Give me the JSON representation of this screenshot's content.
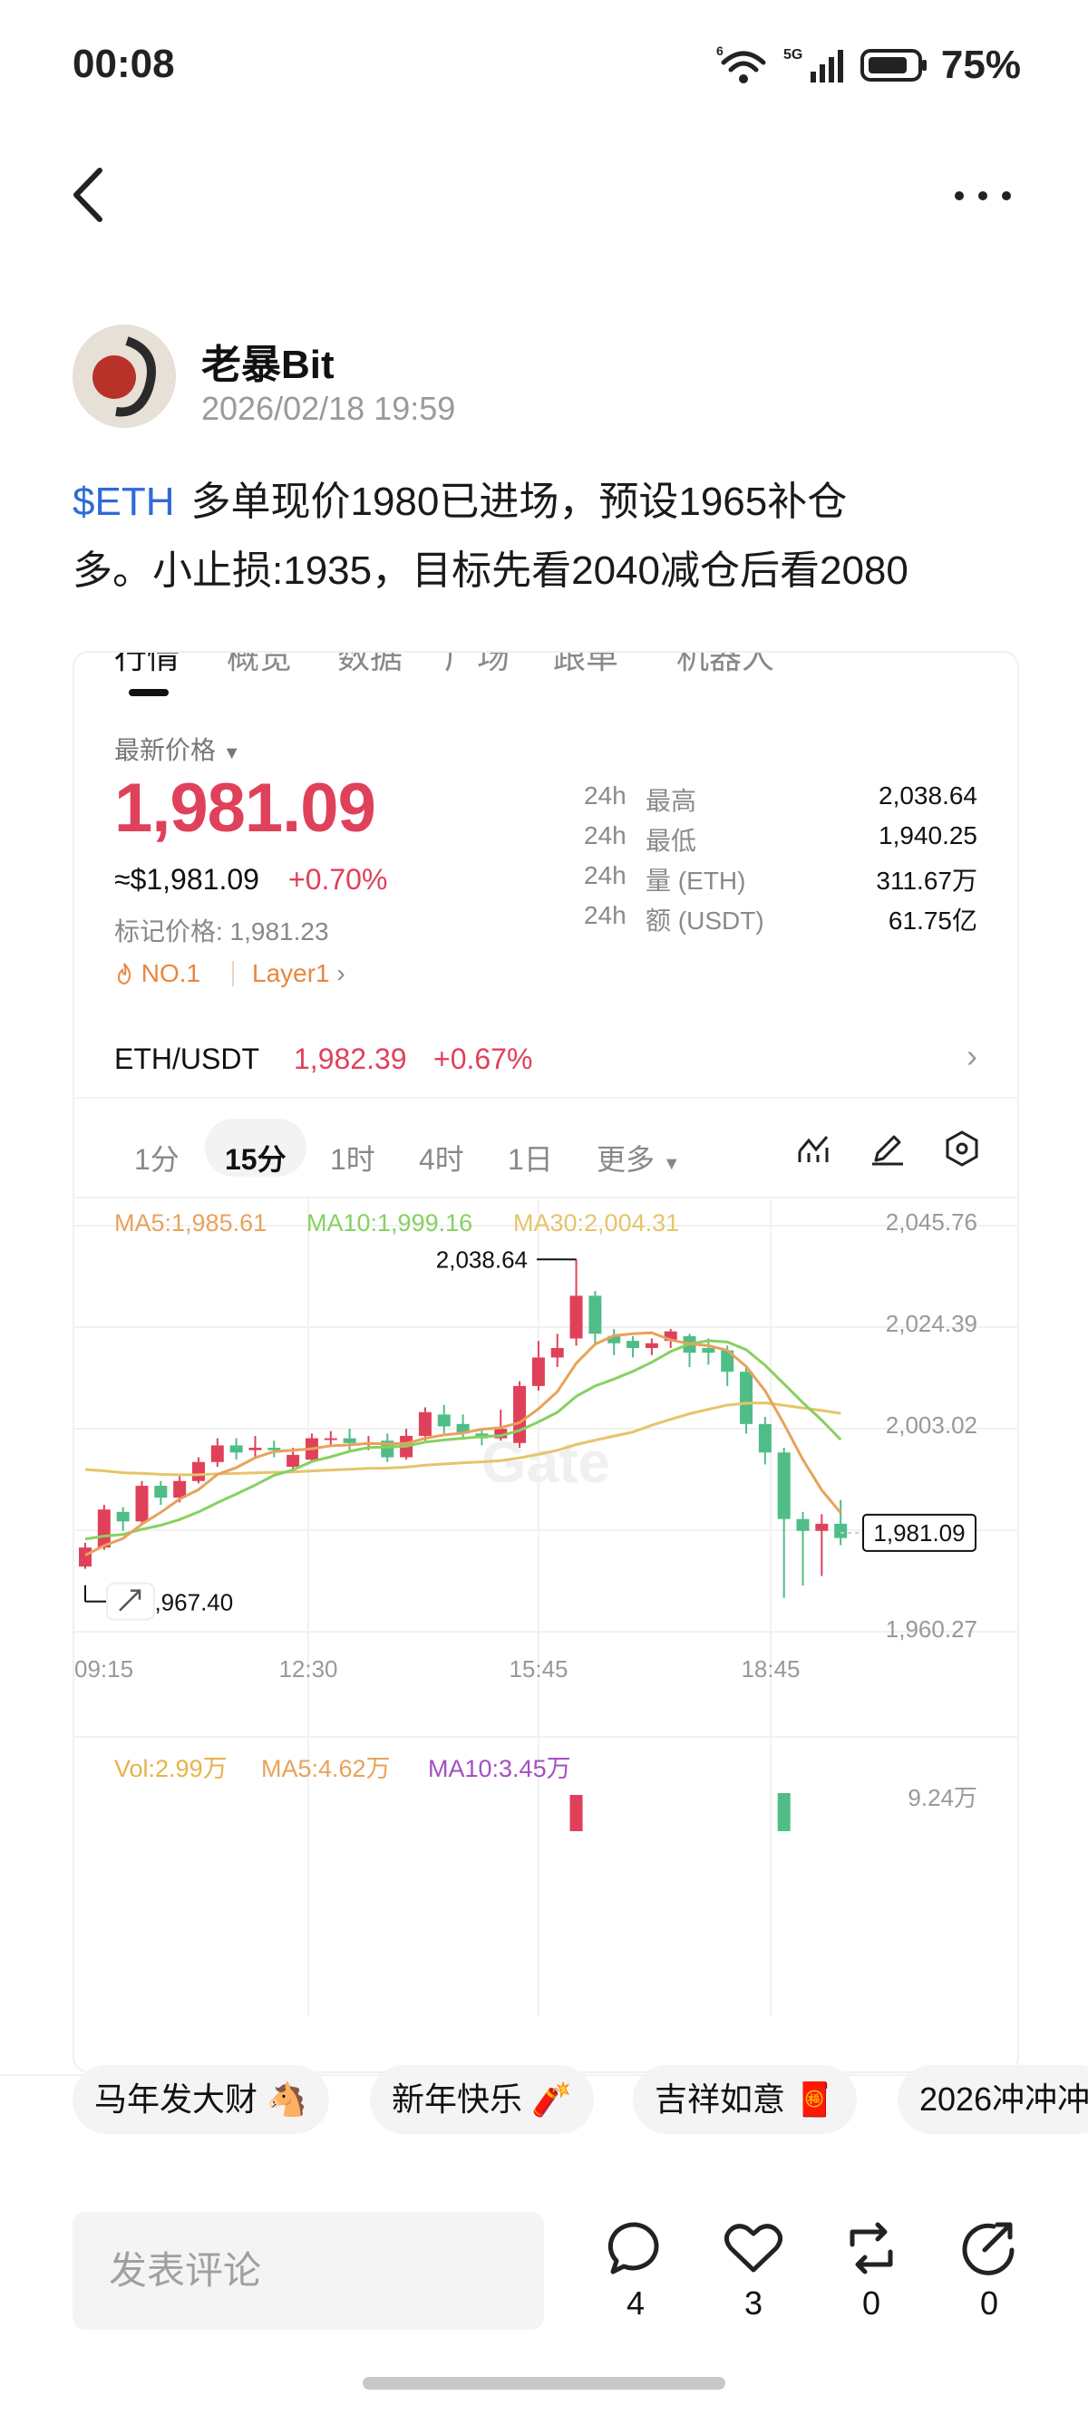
{
  "status": {
    "time": "00:08",
    "network": "5G",
    "battery": "75%"
  },
  "post": {
    "author": "老暴Bit",
    "avatar_text": "老暴",
    "time": "2026/02/18 19:59",
    "tag": "$ETH",
    "line1": "多单现价1980已进场，预设1965补仓",
    "line2": "多。小止损:1935，目标先看2040减仓后看2080"
  },
  "card": {
    "tabs": [
      "行情",
      "概览",
      "数据",
      "广场",
      "跟单",
      "机器人"
    ],
    "price_label": "最新价格",
    "price": "1,981.09",
    "price_usd": "≈$1,981.09",
    "change": "+0.70%",
    "mark_price": "标记价格: 1,981.23",
    "rank": "NO.1",
    "layer": "Layer1",
    "stats": [
      {
        "period": "24h",
        "label": "最高",
        "value": "2,038.64"
      },
      {
        "period": "24h",
        "label": "最低",
        "value": "1,940.25"
      },
      {
        "period": "24h",
        "label": "量 (ETH)",
        "value": "311.67万"
      },
      {
        "period": "24h",
        "label": "额 (USDT)",
        "value": "61.75亿"
      }
    ],
    "pair": {
      "name": "ETH/USDT",
      "price": "1,982.39",
      "change": "+0.67%"
    },
    "timeframes": [
      "1分",
      "15分",
      "1时",
      "4时",
      "1日",
      "更多"
    ],
    "active_timeframe": "15分"
  },
  "chart_data": {
    "type": "candlestick",
    "watermark": "Gate",
    "ma_legend": {
      "ma5": "MA5:1,985.61",
      "ma10": "MA10:1,999.16",
      "ma30": "MA30:2,004.31"
    },
    "y_ticks": [
      "2,045.76",
      "2,024.39",
      "2,003.02",
      "1,981.09",
      "1,960.27"
    ],
    "x_ticks": [
      "09:15",
      "12:30",
      "15:45",
      "18:45"
    ],
    "high_label": "2,038.64",
    "low_label": "1,967.40",
    "current_price": "1,981.09",
    "ylim": [
      1960.27,
      2045.76
    ],
    "colors": {
      "up": "#e0415a",
      "down": "#4fbd87",
      "ma5": "#e8a25a",
      "ma10": "#86d160",
      "ma30": "#e6c46a"
    },
    "candles": [
      [
        1974.0,
        1978.0,
        1973.5,
        1979.0
      ],
      [
        1978.0,
        1986.0,
        1977.5,
        1987.0
      ],
      [
        1985.5,
        1983.5,
        1981.5,
        1986.5
      ],
      [
        1983.5,
        1991.0,
        1983.0,
        1992.0
      ],
      [
        1991.0,
        1988.5,
        1987.0,
        1992.0
      ],
      [
        1988.5,
        1992.0,
        1987.5,
        1993.0
      ],
      [
        1992.0,
        1996.0,
        1991.5,
        1997.0
      ],
      [
        1996.0,
        1999.5,
        1995.0,
        2001.0
      ],
      [
        1999.5,
        1998.0,
        1996.5,
        2001.0
      ],
      [
        1998.5,
        1999.0,
        1997.0,
        2001.5
      ],
      [
        1999.0,
        1998.5,
        1997.0,
        2000.5
      ],
      [
        1995.0,
        1997.5,
        1994.5,
        1999.0
      ],
      [
        1996.5,
        2001.0,
        1996.0,
        2002.0
      ],
      [
        2001.0,
        2001.0,
        1999.5,
        2002.5
      ],
      [
        2001.0,
        2000.0,
        1998.0,
        2003.0
      ],
      [
        2000.0,
        2000.0,
        1998.5,
        2001.5
      ],
      [
        2000.5,
        1997.0,
        1996.0,
        2002.0
      ],
      [
        1997.0,
        2001.5,
        1996.5,
        2003.0
      ],
      [
        2001.5,
        2006.5,
        2000.5,
        2007.5
      ],
      [
        2006.0,
        2003.5,
        2002.0,
        2008.0
      ],
      [
        2004.0,
        2002.0,
        2001.0,
        2006.0
      ],
      [
        2002.0,
        2001.0,
        1999.5,
        2003.0
      ],
      [
        2001.0,
        2003.0,
        2000.5,
        2007.0
      ],
      [
        2000.0,
        2012.0,
        1999.0,
        2013.0
      ],
      [
        2012.0,
        2018.0,
        2011.0,
        2021.5
      ],
      [
        2018.0,
        2020.0,
        2016.0,
        2023.0
      ],
      [
        2022.0,
        2031.0,
        2020.5,
        2038.64
      ],
      [
        2031.0,
        2023.0,
        2021.0,
        2032.0
      ],
      [
        2022.5,
        2021.0,
        2018.5,
        2024.0
      ],
      [
        2021.5,
        2020.0,
        2018.0,
        2022.5
      ],
      [
        2020.0,
        2021.0,
        2018.5,
        2022.0
      ],
      [
        2021.5,
        2023.5,
        2020.0,
        2024.0
      ],
      [
        2022.5,
        2019.0,
        2016.0,
        2023.0
      ],
      [
        2020.0,
        2019.0,
        2016.5,
        2022.0
      ],
      [
        2019.5,
        2015.0,
        2012.0,
        2020.5
      ],
      [
        2015.0,
        2004.0,
        2002.0,
        2016.0
      ],
      [
        2004.0,
        1998.0,
        1995.5,
        2005.5
      ],
      [
        1998.0,
        1984.0,
        1967.4,
        1999.0
      ],
      [
        1984.0,
        1981.5,
        1970.0,
        1985.5
      ],
      [
        1981.5,
        1983.0,
        1972.0,
        1985.0
      ],
      [
        1983.0,
        1980.0,
        1978.5,
        1988.0
      ]
    ],
    "ma_hint": "MA lines computed from candle closes",
    "volume_legend": {
      "vol": "Vol:2.99万",
      "ma5": "MA5:4.62万",
      "ma10": "MA10:3.45万"
    },
    "volume_tick": "9.24万"
  },
  "chips": [
    "马年发大财 🐴",
    "新年快乐 🧨",
    "吉祥如意 🧧",
    "2026冲冲冲"
  ],
  "comment": {
    "placeholder": "发表评论"
  },
  "actions": [
    {
      "name": "comment",
      "count": "4"
    },
    {
      "name": "like",
      "count": "3"
    },
    {
      "name": "repost",
      "count": "0"
    },
    {
      "name": "share",
      "count": "0"
    }
  ]
}
